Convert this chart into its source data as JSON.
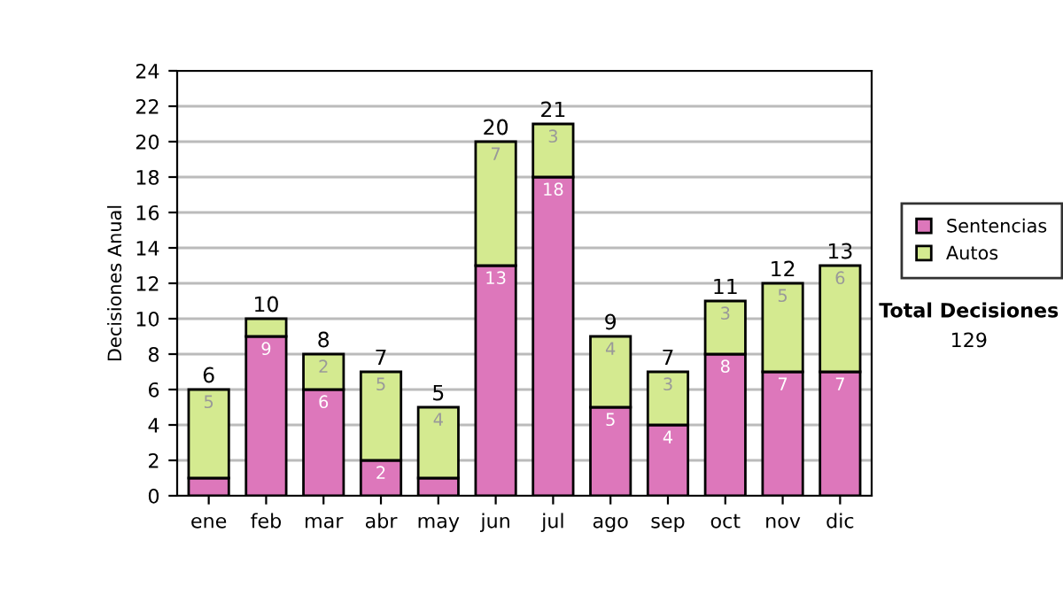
{
  "chart_data": {
    "type": "bar",
    "stacked": true,
    "ylabel": "Decisiones Anual",
    "categories": [
      "ene",
      "feb",
      "mar",
      "abr",
      "may",
      "jun",
      "jul",
      "ago",
      "sep",
      "oct",
      "nov",
      "dic"
    ],
    "series": [
      {
        "name": "Sentencias",
        "color": "#dd77bb",
        "values": [
          1,
          9,
          6,
          2,
          1,
          13,
          18,
          5,
          4,
          8,
          7,
          7
        ],
        "value_labels": [
          null,
          "9",
          "6",
          "2",
          null,
          "13",
          "18",
          "5",
          "4",
          "8",
          "7",
          "7"
        ]
      },
      {
        "name": "Autos",
        "color": "#d4ea90",
        "values": [
          5,
          1,
          2,
          5,
          4,
          7,
          3,
          4,
          3,
          3,
          5,
          6
        ],
        "value_labels": [
          "5",
          null,
          "2",
          "5",
          "4",
          "7",
          "3",
          "4",
          "3",
          "3",
          "5",
          "6"
        ]
      }
    ],
    "totals": [
      "6",
      "10",
      "8",
      "7",
      "5",
      "20",
      "21",
      "9",
      "7",
      "11",
      "12",
      "13"
    ],
    "ylim": [
      0,
      24
    ],
    "yticks": [
      0,
      2,
      4,
      6,
      8,
      10,
      12,
      14,
      16,
      18,
      20,
      22,
      24
    ],
    "grid": "y",
    "legend": "right",
    "annotations": [
      "Total Decisiones",
      "129"
    ]
  }
}
